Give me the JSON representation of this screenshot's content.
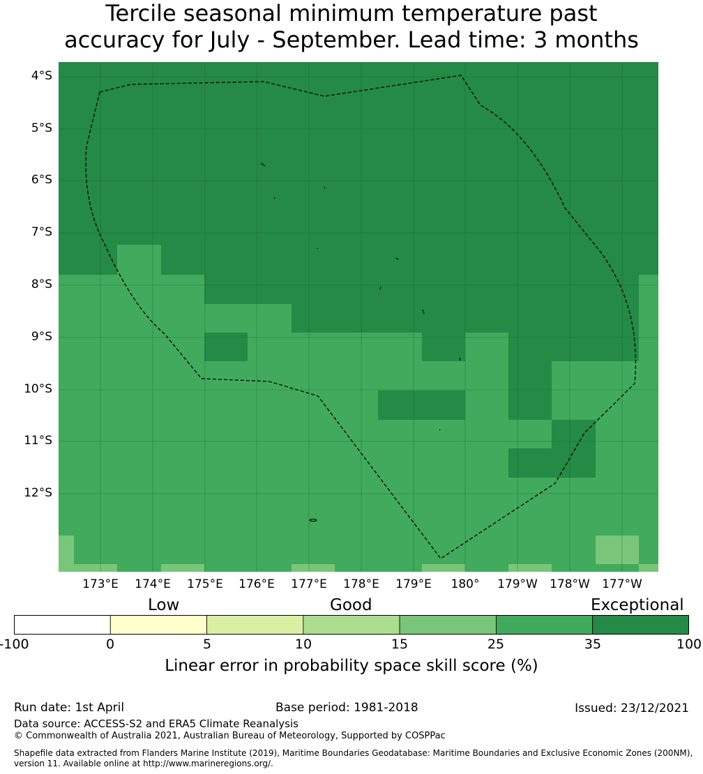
{
  "title": {
    "line1": "Tercile seasonal minimum temperature past",
    "line2": "accuracy for July - September. Lead time: 3 months"
  },
  "map": {
    "lat_labels": [
      "4°S",
      "5°S",
      "6°S",
      "7°S",
      "8°S",
      "9°S",
      "10°S",
      "11°S",
      "12°S"
    ],
    "lon_labels": [
      "173°E",
      "174°E",
      "175°E",
      "176°E",
      "177°E",
      "178°E",
      "179°E",
      "180°",
      "179°W",
      "178°W",
      "177°W"
    ],
    "colors": {
      "exceptional": "#248a45",
      "high": "#41aa5c",
      "medium": "#79c67a",
      "good": "#addd8e",
      "low": "#d9f0a3",
      "low0": "#ffffcc",
      "none": "#ffffff"
    }
  },
  "colorbar": {
    "categories": [
      "Low",
      "Good",
      "Exceptional"
    ],
    "ticks": [
      "-100",
      "0",
      "5",
      "10",
      "15",
      "25",
      "35",
      "100"
    ],
    "colors": [
      "#ffffff",
      "#ffffcc",
      "#d9f0a3",
      "#addd8e",
      "#79c67a",
      "#41aa5c",
      "#248a45"
    ],
    "label": "Linear error in probability space skill score (%)"
  },
  "footer": {
    "run_date": "Run date: 1st April",
    "base_period": "Base period: 1981-2018",
    "issued": "Issued: 23/12/2021",
    "data_source": "Data source: ACCESS-S2 and ERA5 Climate Reanalysis",
    "copyright": "© Commonwealth of Australia 2021, Australian Bureau of Meteorology, Supported by COSPPac",
    "shapefile_line1": "Shapefile data extracted from Flanders Marine Institute (2019), Maritime Boundaries Geodatabase: Maritime Boundaries and Exclusive Economic Zones (200NM),",
    "shapefile_line2": "version 11. Available online at http://www.marineregions.org/."
  }
}
